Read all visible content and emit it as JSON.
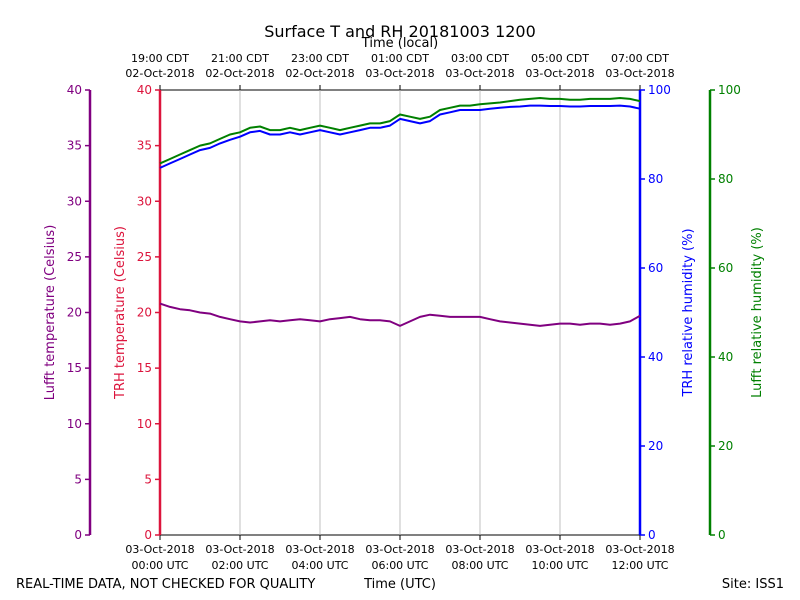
{
  "chart_data": {
    "type": "line",
    "title": "Surface T and RH 20181003 1200",
    "top_axis_label": "Time (local)",
    "bottom_axis_label": "Time (UTC)",
    "footer_left": "REAL-TIME DATA, NOT CHECKED FOR QUALITY",
    "footer_right": "Site: ISS1",
    "x_range": [
      0,
      12
    ],
    "x_ticks": [
      {
        "x": 0,
        "utc_date": "03-Oct-2018",
        "utc_time": "00:00 UTC",
        "local_time": "19:00 CDT",
        "local_date": "02-Oct-2018"
      },
      {
        "x": 2,
        "utc_date": "03-Oct-2018",
        "utc_time": "02:00 UTC",
        "local_time": "21:00 CDT",
        "local_date": "02-Oct-2018"
      },
      {
        "x": 4,
        "utc_date": "03-Oct-2018",
        "utc_time": "04:00 UTC",
        "local_time": "23:00 CDT",
        "local_date": "02-Oct-2018"
      },
      {
        "x": 6,
        "utc_date": "03-Oct-2018",
        "utc_time": "06:00 UTC",
        "local_time": "01:00 CDT",
        "local_date": "03-Oct-2018"
      },
      {
        "x": 8,
        "utc_date": "03-Oct-2018",
        "utc_time": "08:00 UTC",
        "local_time": "03:00 CDT",
        "local_date": "03-Oct-2018"
      },
      {
        "x": 10,
        "utc_date": "03-Oct-2018",
        "utc_time": "10:00 UTC",
        "local_time": "05:00 CDT",
        "local_date": "03-Oct-2018"
      },
      {
        "x": 12,
        "utc_date": "03-Oct-2018",
        "utc_time": "12:00 UTC",
        "local_time": "07:00 CDT",
        "local_date": "03-Oct-2018"
      }
    ],
    "grid": true,
    "y_axes": [
      {
        "id": "lufft_t",
        "label": "Lufft temperature (Celsius)",
        "range": [
          0,
          40
        ],
        "ticks": [
          0,
          5,
          10,
          15,
          20,
          25,
          30,
          35,
          40
        ],
        "color": "#800080",
        "side": "left-outer"
      },
      {
        "id": "trh_t",
        "label": "TRH temperature (Celsius)",
        "range": [
          0,
          40
        ],
        "ticks": [
          0,
          5,
          10,
          15,
          20,
          25,
          30,
          35,
          40
        ],
        "color": "#dc143c",
        "side": "left-inner"
      },
      {
        "id": "trh_rh",
        "label": "TRH relative humidity (%)",
        "range": [
          0,
          100
        ],
        "ticks": [
          0,
          20,
          40,
          60,
          80,
          100
        ],
        "color": "#0000ff",
        "side": "right-inner"
      },
      {
        "id": "lufft_rh",
        "label": "Lufft relative humidity (%)",
        "range": [
          0,
          100
        ],
        "ticks": [
          0,
          20,
          40,
          60,
          80,
          100
        ],
        "color": "#008000",
        "side": "right-outer"
      }
    ],
    "series": [
      {
        "axis": "lufft_rh",
        "color": "#008000",
        "x": [
          0,
          0.25,
          0.5,
          0.75,
          1,
          1.25,
          1.5,
          1.75,
          2,
          2.25,
          2.5,
          2.75,
          3,
          3.25,
          3.5,
          3.75,
          4,
          4.25,
          4.5,
          4.75,
          5,
          5.25,
          5.5,
          5.75,
          6,
          6.25,
          6.5,
          6.75,
          7,
          7.25,
          7.5,
          7.75,
          8,
          8.25,
          8.5,
          8.75,
          9,
          9.25,
          9.5,
          9.75,
          10,
          10.25,
          10.5,
          10.75,
          11,
          11.25,
          11.5,
          11.75,
          12
        ],
        "values": [
          83.5,
          84.5,
          85.5,
          86.5,
          87.5,
          88.0,
          89.0,
          90.0,
          90.5,
          91.5,
          91.8,
          91.0,
          91.0,
          91.5,
          91.0,
          91.5,
          92.0,
          91.5,
          91.0,
          91.5,
          92.0,
          92.5,
          92.5,
          93.0,
          94.5,
          94.0,
          93.5,
          94.0,
          95.5,
          96.0,
          96.5,
          96.5,
          96.8,
          97.0,
          97.2,
          97.5,
          97.8,
          98.0,
          98.2,
          98.0,
          98.0,
          97.8,
          97.8,
          98.0,
          98.0,
          98.0,
          98.2,
          98.0,
          97.5
        ]
      },
      {
        "axis": "trh_rh",
        "color": "#0000ff",
        "x": [
          0,
          0.25,
          0.5,
          0.75,
          1,
          1.25,
          1.5,
          1.75,
          2,
          2.25,
          2.5,
          2.75,
          3,
          3.25,
          3.5,
          3.75,
          4,
          4.25,
          4.5,
          4.75,
          5,
          5.25,
          5.5,
          5.75,
          6,
          6.25,
          6.5,
          6.75,
          7,
          7.25,
          7.5,
          7.75,
          8,
          8.25,
          8.5,
          8.75,
          9,
          9.25,
          9.5,
          9.75,
          10,
          10.25,
          10.5,
          10.75,
          11,
          11.25,
          11.5,
          11.75,
          12
        ],
        "values": [
          82.5,
          83.5,
          84.5,
          85.5,
          86.5,
          87.0,
          88.0,
          88.8,
          89.5,
          90.5,
          90.8,
          90.0,
          90.0,
          90.5,
          90.0,
          90.5,
          91.0,
          90.5,
          90.0,
          90.5,
          91.0,
          91.5,
          91.5,
          92.0,
          93.5,
          93.0,
          92.5,
          93.0,
          94.5,
          95.0,
          95.5,
          95.5,
          95.5,
          95.8,
          96.0,
          96.2,
          96.3,
          96.5,
          96.5,
          96.4,
          96.4,
          96.3,
          96.3,
          96.4,
          96.4,
          96.4,
          96.5,
          96.3,
          95.8
        ]
      },
      {
        "axis": "lufft_t",
        "color": "#800080",
        "x": [
          0,
          0.25,
          0.5,
          0.75,
          1,
          1.25,
          1.5,
          1.75,
          2,
          2.25,
          2.5,
          2.75,
          3,
          3.25,
          3.5,
          3.75,
          4,
          4.25,
          4.5,
          4.75,
          5,
          5.25,
          5.5,
          5.75,
          6,
          6.25,
          6.5,
          6.75,
          7,
          7.25,
          7.5,
          7.75,
          8,
          8.25,
          8.5,
          8.75,
          9,
          9.25,
          9.5,
          9.75,
          10,
          10.25,
          10.5,
          10.75,
          11,
          11.25,
          11.5,
          11.75,
          12
        ],
        "values": [
          20.8,
          20.5,
          20.3,
          20.2,
          20.0,
          19.9,
          19.6,
          19.4,
          19.2,
          19.1,
          19.2,
          19.3,
          19.2,
          19.3,
          19.4,
          19.3,
          19.2,
          19.4,
          19.5,
          19.6,
          19.4,
          19.3,
          19.3,
          19.2,
          18.8,
          19.2,
          19.6,
          19.8,
          19.7,
          19.6,
          19.6,
          19.6,
          19.6,
          19.4,
          19.2,
          19.1,
          19.0,
          18.9,
          18.8,
          18.9,
          19.0,
          19.0,
          18.9,
          19.0,
          19.0,
          18.9,
          19.0,
          19.2,
          19.7
        ]
      }
    ]
  }
}
